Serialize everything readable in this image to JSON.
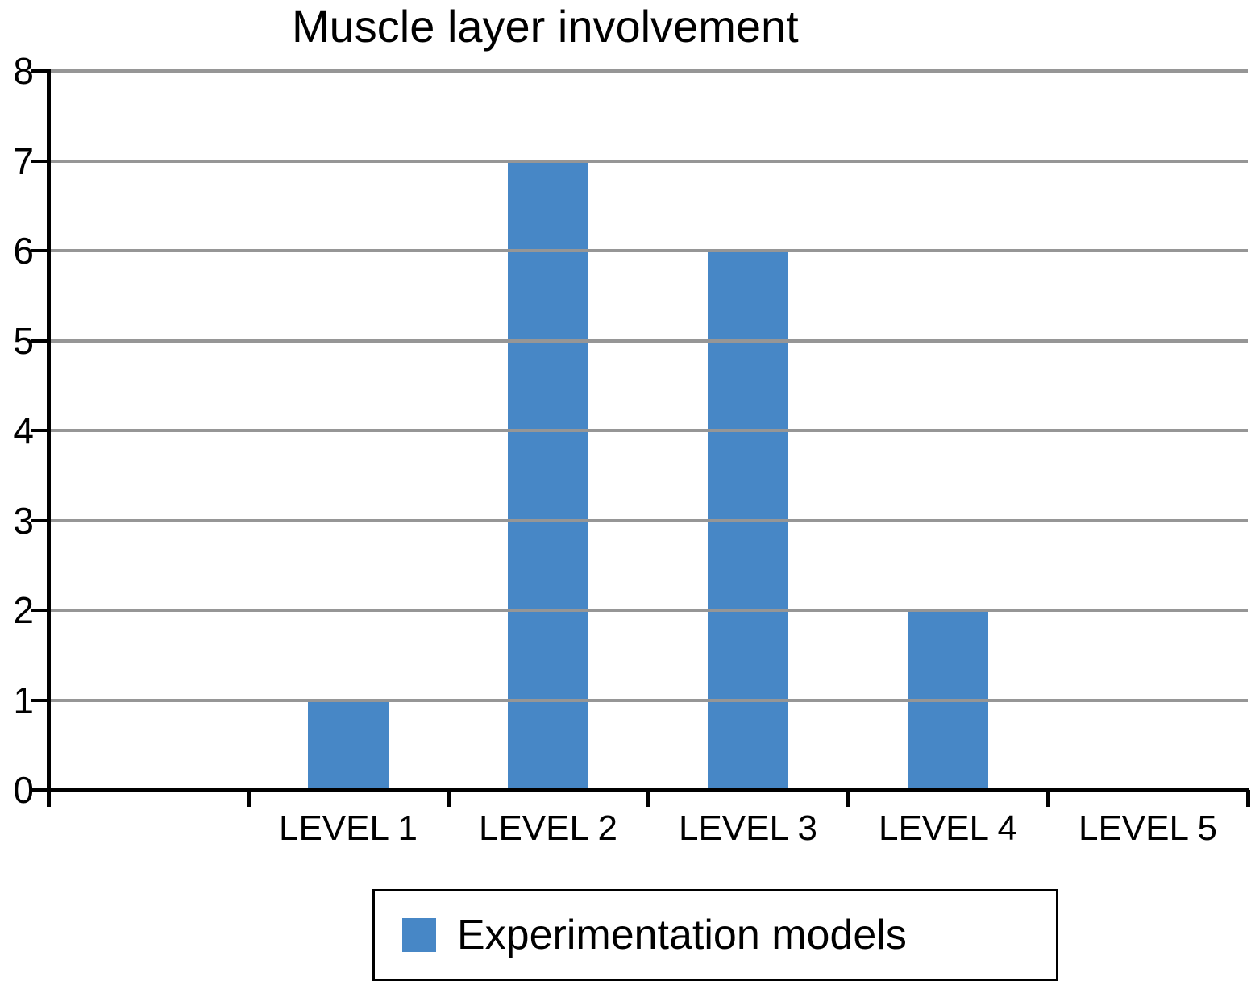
{
  "chart_data": {
    "type": "bar",
    "title": "Muscle layer involvement",
    "categories": [
      "LEVEL 1",
      "LEVEL 2",
      "LEVEL 3",
      "LEVEL 4",
      "LEVEL 5"
    ],
    "values": [
      1,
      7,
      6,
      2,
      0
    ],
    "series": [
      {
        "name": "Experimentation models",
        "values": [
          1,
          7,
          6,
          2,
          0
        ]
      }
    ],
    "xlabel": "",
    "ylabel": "",
    "ylim": [
      0,
      8
    ],
    "yticks": [
      0,
      1,
      2,
      3,
      4,
      5,
      6,
      7,
      8
    ],
    "grid": "horizontal",
    "legend_position": "bottom",
    "leading_empty_slot": true,
    "colors": {
      "bar": "#4787C6",
      "gridline": "#969696",
      "axis": "#000000",
      "text": "#000000",
      "background": "#FFFFFF"
    },
    "legend": {
      "label": "Experimentation models",
      "swatch_color": "#4787C6"
    }
  }
}
